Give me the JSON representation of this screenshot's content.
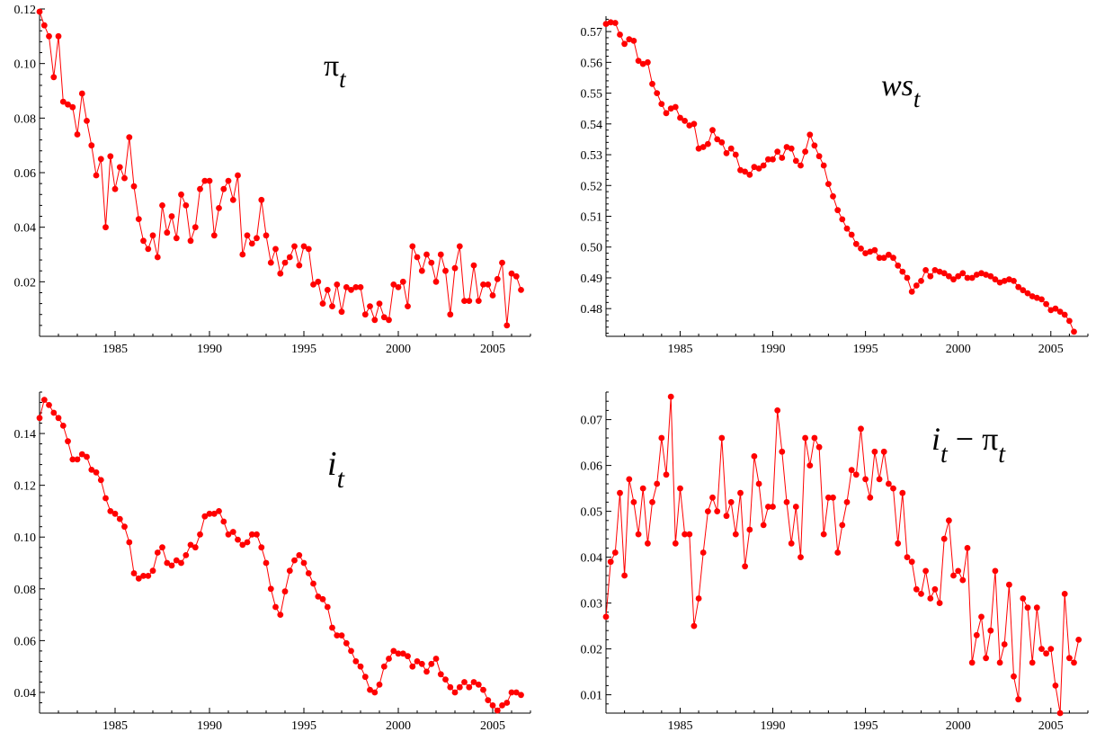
{
  "colors": {
    "series": "#ff0000",
    "axis": "#000000",
    "background": "#ffffff"
  },
  "chart_data": [
    {
      "type": "line",
      "title": "π",
      "title_sub": "t",
      "xlabel": "",
      "ylabel": "",
      "xlim": [
        1981,
        2007
      ],
      "ylim": [
        0,
        0.12
      ],
      "x_ticks": [
        1985,
        1990,
        1995,
        2000,
        2005
      ],
      "x_tick_labels": [
        "1985",
        "1990",
        "1995",
        "2000",
        "2005"
      ],
      "y_ticks": [
        0.02,
        0.04,
        0.06,
        0.08,
        0.1,
        0.12
      ],
      "y_tick_labels": [
        "0.02",
        "0.04",
        "0.06",
        "0.08",
        "0.10",
        "0.12"
      ],
      "grid": false,
      "series": [
        {
          "x_start": 1981.0,
          "x_step": 0.25,
          "values": [
            0.119,
            0.114,
            0.11,
            0.095,
            0.11,
            0.086,
            0.085,
            0.084,
            0.074,
            0.089,
            0.079,
            0.07,
            0.059,
            0.065,
            0.04,
            0.066,
            0.054,
            0.062,
            0.058,
            0.073,
            0.055,
            0.043,
            0.035,
            0.032,
            0.037,
            0.029,
            0.048,
            0.038,
            0.044,
            0.036,
            0.052,
            0.048,
            0.035,
            0.04,
            0.054,
            0.057,
            0.057,
            0.037,
            0.047,
            0.054,
            0.057,
            0.05,
            0.059,
            0.03,
            0.037,
            0.034,
            0.036,
            0.05,
            0.037,
            0.027,
            0.032,
            0.023,
            0.027,
            0.029,
            0.033,
            0.026,
            0.033,
            0.032,
            0.019,
            0.02,
            0.012,
            0.017,
            0.011,
            0.019,
            0.009,
            0.018,
            0.017,
            0.018,
            0.018,
            0.008,
            0.011,
            0.006,
            0.012,
            0.007,
            0.006,
            0.019,
            0.018,
            0.02,
            0.011,
            0.033,
            0.029,
            0.024,
            0.03,
            0.027,
            0.02,
            0.03,
            0.024,
            0.008,
            0.025,
            0.033,
            0.013,
            0.013,
            0.026,
            0.013,
            0.019,
            0.019,
            0.015,
            0.021,
            0.027,
            0.004,
            0.023,
            0.022,
            0.017
          ]
        }
      ]
    },
    {
      "type": "line",
      "title": "ws",
      "title_sub": "t",
      "xlabel": "",
      "ylabel": "",
      "xlim": [
        1981,
        2007
      ],
      "ylim": [
        0.471,
        0.575
      ],
      "x_ticks": [
        1985,
        1990,
        1995,
        2000,
        2005
      ],
      "x_tick_labels": [
        "1985",
        "1990",
        "1995",
        "2000",
        "2005"
      ],
      "y_ticks": [
        0.48,
        0.49,
        0.5,
        0.51,
        0.52,
        0.53,
        0.54,
        0.55,
        0.56,
        0.57
      ],
      "y_tick_labels": [
        "0.48",
        "0.49",
        "0.50",
        "0.51",
        "0.52",
        "0.53",
        "0.54",
        "0.55",
        "0.56",
        "0.57"
      ],
      "grid": false,
      "series": [
        {
          "x_start": 1981.0,
          "x_step": 0.25,
          "values": [
            0.5725,
            0.573,
            0.5728,
            0.569,
            0.566,
            0.5675,
            0.567,
            0.5605,
            0.5595,
            0.56,
            0.553,
            0.55,
            0.5465,
            0.5435,
            0.545,
            0.5455,
            0.542,
            0.541,
            0.5395,
            0.54,
            0.532,
            0.5325,
            0.5335,
            0.538,
            0.535,
            0.534,
            0.5305,
            0.532,
            0.53,
            0.525,
            0.5245,
            0.5235,
            0.526,
            0.5255,
            0.5265,
            0.5285,
            0.5285,
            0.531,
            0.529,
            0.5325,
            0.532,
            0.528,
            0.5265,
            0.531,
            0.5365,
            0.533,
            0.5295,
            0.5265,
            0.5205,
            0.5165,
            0.512,
            0.509,
            0.506,
            0.504,
            0.501,
            0.4995,
            0.498,
            0.4985,
            0.499,
            0.4965,
            0.4965,
            0.4975,
            0.4965,
            0.494,
            0.492,
            0.49,
            0.4855,
            0.4875,
            0.489,
            0.4925,
            0.4905,
            0.4925,
            0.492,
            0.4915,
            0.4905,
            0.4895,
            0.4905,
            0.4915,
            0.49,
            0.49,
            0.491,
            0.4915,
            0.491,
            0.4905,
            0.4895,
            0.4885,
            0.489,
            0.4895,
            0.489,
            0.487,
            0.486,
            0.485,
            0.484,
            0.4835,
            0.483,
            0.4815,
            0.4795,
            0.48,
            0.479,
            0.478,
            0.476,
            0.4725
          ]
        }
      ]
    },
    {
      "type": "line",
      "title": "i",
      "title_sub": "t",
      "xlabel": "",
      "ylabel": "",
      "xlim": [
        1981,
        2007
      ],
      "ylim": [
        0.032,
        0.156
      ],
      "x_ticks": [
        1985,
        1990,
        1995,
        2000,
        2005
      ],
      "x_tick_labels": [
        "1985",
        "1990",
        "1995",
        "2000",
        "2005"
      ],
      "y_ticks": [
        0.04,
        0.06,
        0.08,
        0.1,
        0.12,
        0.14
      ],
      "y_tick_labels": [
        "0.04",
        "0.06",
        "0.08",
        "0.10",
        "0.12",
        "0.14"
      ],
      "grid": false,
      "series": [
        {
          "x_start": 1981.0,
          "x_step": 0.25,
          "values": [
            0.146,
            0.153,
            0.151,
            0.148,
            0.146,
            0.143,
            0.137,
            0.13,
            0.13,
            0.132,
            0.131,
            0.126,
            0.125,
            0.122,
            0.115,
            0.11,
            0.109,
            0.107,
            0.104,
            0.098,
            0.086,
            0.084,
            0.085,
            0.085,
            0.087,
            0.094,
            0.096,
            0.09,
            0.089,
            0.091,
            0.09,
            0.093,
            0.097,
            0.096,
            0.101,
            0.108,
            0.109,
            0.109,
            0.11,
            0.106,
            0.101,
            0.102,
            0.099,
            0.097,
            0.098,
            0.101,
            0.101,
            0.096,
            0.09,
            0.08,
            0.073,
            0.07,
            0.079,
            0.087,
            0.091,
            0.093,
            0.09,
            0.086,
            0.082,
            0.077,
            0.076,
            0.073,
            0.065,
            0.062,
            0.062,
            0.059,
            0.056,
            0.052,
            0.05,
            0.046,
            0.041,
            0.04,
            0.043,
            0.05,
            0.053,
            0.056,
            0.055,
            0.055,
            0.054,
            0.05,
            0.052,
            0.051,
            0.048,
            0.051,
            0.053,
            0.047,
            0.045,
            0.042,
            0.04,
            0.042,
            0.044,
            0.042,
            0.044,
            0.043,
            0.041,
            0.037,
            0.035,
            0.033,
            0.035,
            0.036,
            0.04,
            0.04,
            0.039
          ]
        }
      ]
    },
    {
      "type": "line",
      "title": "i",
      "title_sub": "t",
      "title_operator": "−",
      "title_second": "π",
      "title_second_sub": "t",
      "xlabel": "",
      "ylabel": "",
      "xlim": [
        1981,
        2007
      ],
      "ylim": [
        0.006,
        0.076
      ],
      "x_ticks": [
        1985,
        1990,
        1995,
        2000,
        2005
      ],
      "x_tick_labels": [
        "1985",
        "1990",
        "1995",
        "2000",
        "2005"
      ],
      "y_ticks": [
        0.01,
        0.02,
        0.03,
        0.04,
        0.05,
        0.06,
        0.07
      ],
      "y_tick_labels": [
        "0.01",
        "0.02",
        "0.03",
        "0.04",
        "0.05",
        "0.06",
        "0.07"
      ],
      "grid": false,
      "series": [
        {
          "x_start": 1981.0,
          "x_step": 0.25,
          "values": [
            0.027,
            0.039,
            0.041,
            0.054,
            0.036,
            0.057,
            0.052,
            0.045,
            0.055,
            0.043,
            0.052,
            0.056,
            0.066,
            0.058,
            0.075,
            0.043,
            0.055,
            0.045,
            0.045,
            0.025,
            0.031,
            0.041,
            0.05,
            0.053,
            0.05,
            0.066,
            0.049,
            0.052,
            0.045,
            0.054,
            0.038,
            0.046,
            0.062,
            0.056,
            0.047,
            0.051,
            0.051,
            0.072,
            0.063,
            0.052,
            0.043,
            0.051,
            0.04,
            0.066,
            0.06,
            0.066,
            0.064,
            0.045,
            0.053,
            0.053,
            0.041,
            0.047,
            0.052,
            0.059,
            0.058,
            0.068,
            0.057,
            0.053,
            0.063,
            0.057,
            0.063,
            0.056,
            0.055,
            0.043,
            0.054,
            0.04,
            0.039,
            0.033,
            0.032,
            0.037,
            0.031,
            0.033,
            0.03,
            0.044,
            0.048,
            0.036,
            0.037,
            0.035,
            0.042,
            0.017,
            0.023,
            0.027,
            0.018,
            0.024,
            0.037,
            0.017,
            0.021,
            0.034,
            0.014,
            0.009,
            0.031,
            0.029,
            0.017,
            0.029,
            0.02,
            0.019,
            0.02,
            0.012,
            0.006,
            0.032,
            0.018,
            0.017,
            0.022
          ]
        }
      ]
    }
  ]
}
